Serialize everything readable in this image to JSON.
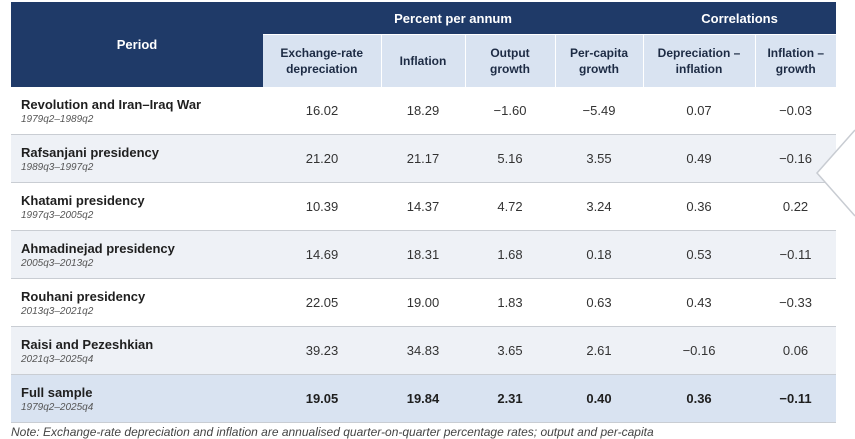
{
  "header": {
    "period": "Period",
    "group_percent": "Percent per annum",
    "group_corr": "Correlations",
    "columns": [
      "Exchange-rate\ndepreciation",
      "Inflation",
      "Output\ngrowth",
      "Per-capita\ngrowth",
      "Depreciation –\ninflation",
      "Inflation –\ngrowth"
    ]
  },
  "rows": [
    {
      "name": "Revolution and Iran–Iraq War",
      "dates": "1979q2–1989q2",
      "values": [
        "16.02",
        "18.29",
        "−1.60",
        "−5.49",
        "0.07",
        "−0.03"
      ]
    },
    {
      "name": "Rafsanjani presidency",
      "dates": "1989q3–1997q2",
      "values": [
        "21.20",
        "21.17",
        "5.16",
        "3.55",
        "0.49",
        "−0.16"
      ]
    },
    {
      "name": "Khatami presidency",
      "dates": "1997q3–2005q2",
      "values": [
        "10.39",
        "14.37",
        "4.72",
        "3.24",
        "0.36",
        "0.22"
      ]
    },
    {
      "name": "Ahmadinejad presidency",
      "dates": "2005q3–2013q2",
      "values": [
        "14.69",
        "18.31",
        "1.68",
        "0.18",
        "0.53",
        "−0.11"
      ]
    },
    {
      "name": "Rouhani presidency",
      "dates": "2013q3–2021q2",
      "values": [
        "22.05",
        "19.00",
        "1.83",
        "0.63",
        "0.43",
        "−0.33"
      ]
    },
    {
      "name": "Raisi and Pezeshkian",
      "dates": "2021q3–2025q4",
      "values": [
        "39.23",
        "34.83",
        "3.65",
        "2.61",
        "−0.16",
        "0.06"
      ]
    }
  ],
  "full_sample": {
    "name": "Full sample",
    "dates": "1979q2–2025q4",
    "values": [
      "19.05",
      "19.84",
      "2.31",
      "0.40",
      "0.36",
      "−0.11"
    ]
  },
  "note": "Note: Exchange-rate depreciation and inflation are annualised quarter-on-quarter percentage rates; output and per-capita",
  "colors": {
    "header_dark": "#1f3a68",
    "header_light": "#d9e3f1",
    "row_alt": "#eef1f6"
  },
  "icons": {
    "side": "chevron-left-icon"
  }
}
